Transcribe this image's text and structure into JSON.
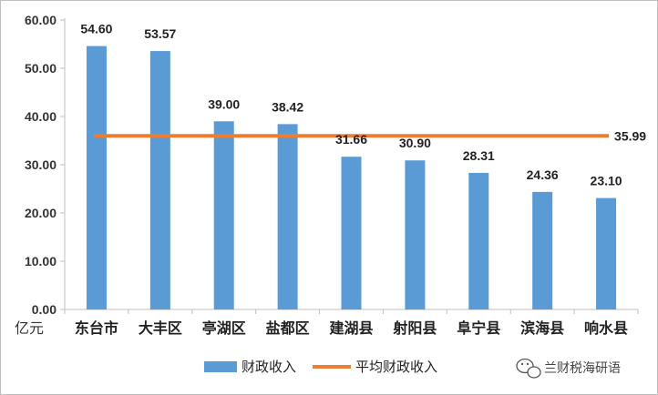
{
  "chart_data": {
    "type": "bar",
    "categories": [
      "东台市",
      "大丰区",
      "亭湖区",
      "盐都区",
      "建湖县",
      "射阳县",
      "阜宁县",
      "滨海县",
      "响水县"
    ],
    "series": [
      {
        "name": "财政收入",
        "type": "bar",
        "color": "#5b9bd5",
        "values": [
          54.6,
          53.57,
          39.0,
          38.42,
          31.66,
          30.9,
          28.31,
          24.36,
          23.1
        ],
        "labels": [
          "54.60",
          "53.57",
          "39.00",
          "38.42",
          "31.66",
          "30.90",
          "28.31",
          "24.36",
          "23.10"
        ]
      },
      {
        "name": "平均财政收入",
        "type": "line",
        "color": "#ed7d31",
        "value": 35.99,
        "label": "35.99"
      }
    ],
    "yticks": [
      "0.00",
      "10.00",
      "20.00",
      "30.00",
      "40.00",
      "50.00",
      "60.00"
    ],
    "ylim": [
      0,
      60
    ],
    "ylabel": "亿元",
    "grid": false,
    "legend": "bottom"
  },
  "watermark": {
    "text": "兰财税海研语"
  }
}
